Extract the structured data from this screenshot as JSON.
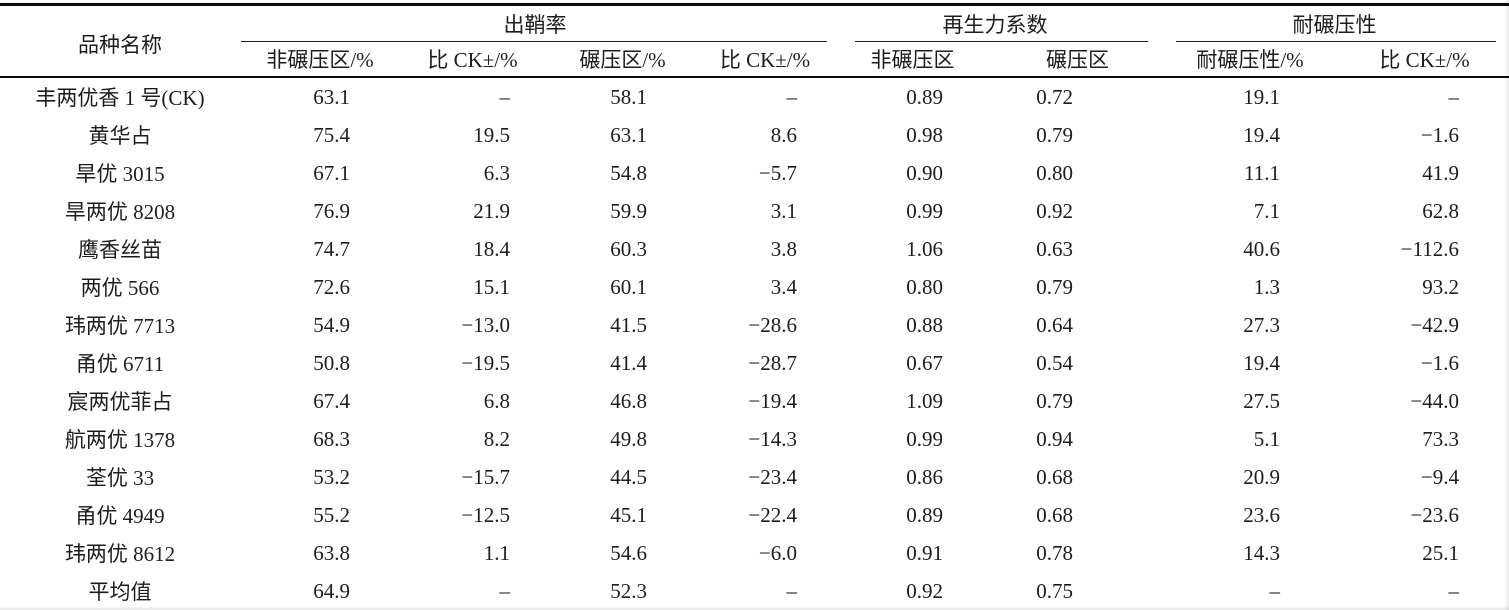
{
  "colors": {
    "ink": "#1d1d1d",
    "rule": "#0a0a0a",
    "background": "#ffffff"
  },
  "table": {
    "col0_header": "品种名称",
    "groups": [
      {
        "label": "出鞘率",
        "span": 4
      },
      {
        "label": "再生力系数",
        "span": 2
      },
      {
        "label": "耐碾压性",
        "span": 2
      }
    ],
    "subheaders": [
      "非碾压区/%",
      "比 CK±/%",
      "碾压区/%",
      "比 CK±/%",
      "非碾压区",
      "碾压区",
      "耐碾压性/%",
      "比 CK±/%"
    ],
    "rows": [
      {
        "name": "丰两优香 1 号(CK)",
        "values": [
          "63.1",
          "–",
          "58.1",
          "–",
          "0.89",
          "0.72",
          "19.1",
          "–"
        ]
      },
      {
        "name": "黄华占",
        "values": [
          "75.4",
          "19.5",
          "63.1",
          "8.6",
          "0.98",
          "0.79",
          "19.4",
          "−1.6"
        ]
      },
      {
        "name": "旱优 3015",
        "values": [
          "67.1",
          "6.3",
          "54.8",
          "−5.7",
          "0.90",
          "0.80",
          "11.1",
          "41.9"
        ]
      },
      {
        "name": "旱两优 8208",
        "values": [
          "76.9",
          "21.9",
          "59.9",
          "3.1",
          "0.99",
          "0.92",
          "7.1",
          "62.8"
        ]
      },
      {
        "name": "鹰香丝苗",
        "values": [
          "74.7",
          "18.4",
          "60.3",
          "3.8",
          "1.06",
          "0.63",
          "40.6",
          "−112.6"
        ]
      },
      {
        "name": "两优 566",
        "values": [
          "72.6",
          "15.1",
          "60.1",
          "3.4",
          "0.80",
          "0.79",
          "1.3",
          "93.2"
        ]
      },
      {
        "name": "玮两优 7713",
        "values": [
          "54.9",
          "−13.0",
          "41.5",
          "−28.6",
          "0.88",
          "0.64",
          "27.3",
          "−42.9"
        ]
      },
      {
        "name": "甬优 6711",
        "values": [
          "50.8",
          "−19.5",
          "41.4",
          "−28.7",
          "0.67",
          "0.54",
          "19.4",
          "−1.6"
        ]
      },
      {
        "name": "宸两优菲占",
        "values": [
          "67.4",
          "6.8",
          "46.8",
          "−19.4",
          "1.09",
          "0.79",
          "27.5",
          "−44.0"
        ]
      },
      {
        "name": "航两优 1378",
        "values": [
          "68.3",
          "8.2",
          "49.8",
          "−14.3",
          "0.99",
          "0.94",
          "5.1",
          "73.3"
        ]
      },
      {
        "name": "荃优 33",
        "values": [
          "53.2",
          "−15.7",
          "44.5",
          "−23.4",
          "0.86",
          "0.68",
          "20.9",
          "−9.4"
        ]
      },
      {
        "name": "甬优 4949",
        "values": [
          "55.2",
          "−12.5",
          "45.1",
          "−22.4",
          "0.89",
          "0.68",
          "23.6",
          "−23.6"
        ]
      },
      {
        "name": "玮两优 8612",
        "values": [
          "63.8",
          "1.1",
          "54.6",
          "−6.0",
          "0.91",
          "0.78",
          "14.3",
          "25.1"
        ]
      },
      {
        "name": "平均值",
        "values": [
          "64.9",
          "–",
          "52.3",
          "–",
          "0.92",
          "0.75",
          "–",
          "–"
        ]
      }
    ]
  }
}
